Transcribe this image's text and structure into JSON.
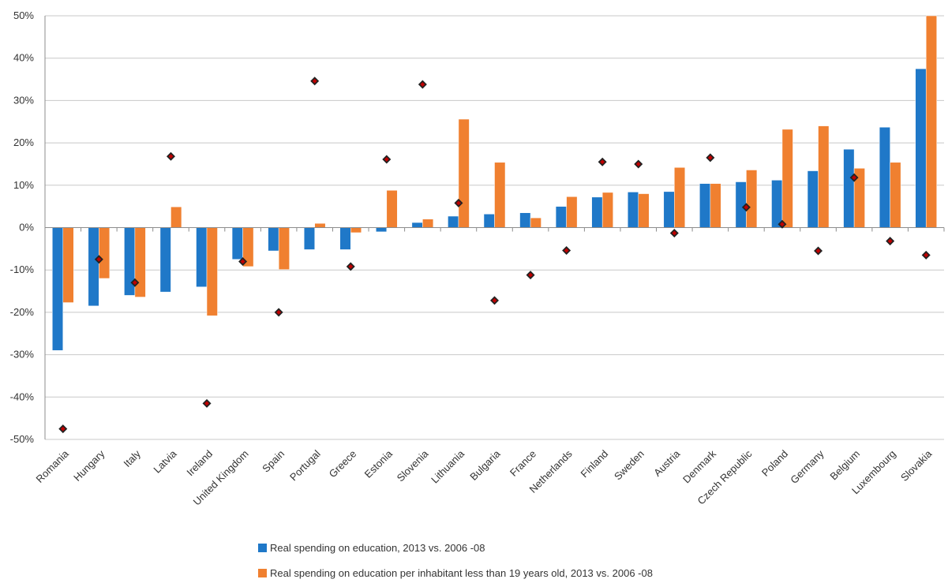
{
  "chart_data": {
    "type": "bar",
    "categories": [
      "Romania",
      "Hungary",
      "Italy",
      "Latvia",
      "Ireland",
      "United Kingdom",
      "Spain",
      "Portugal",
      "Greece",
      "Estonia",
      "Slovenia",
      "Lithuania",
      "Bulgaria",
      "France",
      "Netherlands",
      "Finland",
      "Sweden",
      "Austria",
      "Denmark",
      "Czech Republic",
      "Poland",
      "Germany",
      "Belgium",
      "Luxembourg",
      "Slovakia"
    ],
    "series": [
      {
        "name": "Real spending on education, 2013 vs. 2006 -08",
        "color": "#1f78c8",
        "values": [
          -29,
          -18.5,
          -16,
          -15.2,
          -14,
          -7.5,
          -5.5,
          -5.2,
          -5.2,
          -1,
          1.2,
          2.7,
          3.2,
          3.5,
          5,
          7.2,
          8.4,
          8.5,
          10.4,
          10.8,
          11.2,
          13.4,
          18.5,
          23.7,
          37.5
        ]
      },
      {
        "name": "Real spending on education per inhabitant less than 19 years old, 2013 vs. 2006 -08",
        "color": "#f08030",
        "values": [
          -17.7,
          -12,
          -16.4,
          4.9,
          -20.8,
          -9.2,
          -9.9,
          1,
          -1.2,
          8.8,
          2,
          25.6,
          15.4,
          2.3,
          7.3,
          8.3,
          8,
          14.2,
          10.4,
          13.6,
          23.2,
          24,
          14,
          15.4,
          50
        ]
      },
      {
        "type": "scatter",
        "color": "#c00000",
        "values": [
          -47.5,
          -7.5,
          -13,
          16.8,
          -41.5,
          -8,
          -20,
          34.6,
          -9.2,
          16.1,
          33.8,
          5.8,
          -17.2,
          -11.2,
          -5.4,
          15.5,
          15,
          -1.3,
          16.5,
          4.8,
          0.8,
          -5.5,
          11.8,
          -3.2,
          -6.5
        ]
      }
    ],
    "ylim": [
      -50,
      50
    ],
    "yticks": [
      50,
      40,
      30,
      20,
      10,
      0,
      -10,
      -20,
      -30,
      -40,
      -50
    ],
    "ytick_labels": [
      "50%",
      "40%",
      "30%",
      "20%",
      "10%",
      "0%",
      "-10%",
      "-20%",
      "-30%",
      "-40%",
      "-50%"
    ],
    "grid": true,
    "legend_position": "bottom",
    "title": "",
    "xlabel": "",
    "ylabel": ""
  },
  "legend": {
    "series1": "Real spending on education, 2013 vs. 2006 -08",
    "series2": "Real spending on education per inhabitant less than 19 years old, 2013 vs. 2006 -08"
  }
}
